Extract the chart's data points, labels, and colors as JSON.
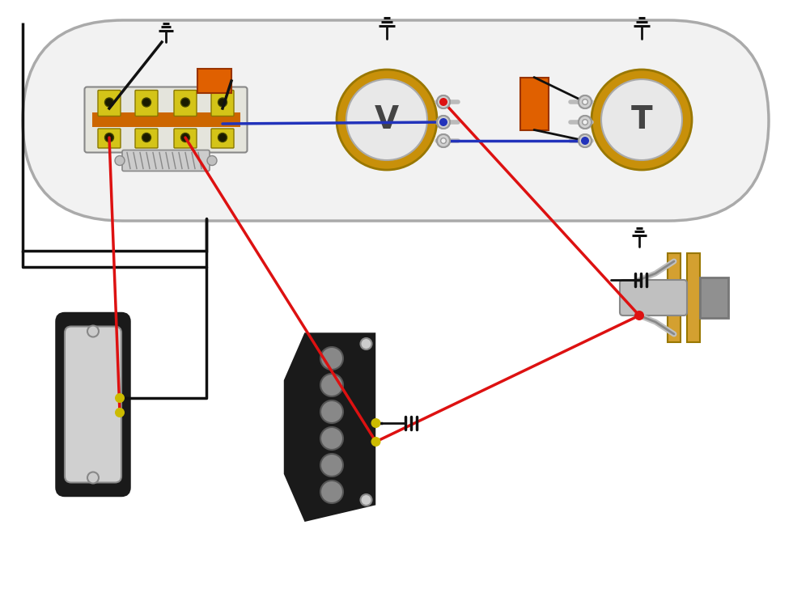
{
  "bg": "#ffffff",
  "plate_fill": "#f2f2f2",
  "plate_edge": "#aaaaaa",
  "switch_fill": "#e8e8e0",
  "tab_fill": "#d4c418",
  "tab_edge": "#887700",
  "strip_color": "#cc6600",
  "cap_color": "#e06000",
  "pot_body": "#c8900a",
  "pot_face": "#e8e8e8",
  "lug_fill": "#d0d0d0",
  "lug_edge": "#999999",
  "pickup_body": "#1a1a1a",
  "pickup_cover": "#d0d0d0",
  "pole_fill": "#888888",
  "pole_edge": "#555555",
  "jack_gold": "#d4a030",
  "jack_gray": "#c0c0c0",
  "jack_darkgray": "#909090",
  "wire_red": "#dd1111",
  "wire_black": "#111111",
  "wire_blue": "#2233bb",
  "wire_yellow": "#ccbb00",
  "spring_color": "#888888"
}
